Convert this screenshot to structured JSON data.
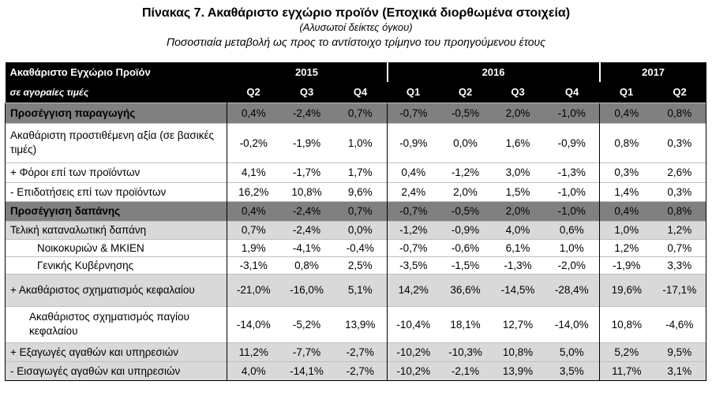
{
  "header": {
    "title": "Πίνακας 7. Ακαθάριστο εγχώριο προϊόν (Εποχικά διορθωμένα στοιχεία)",
    "subtitle1": "(Αλυσωτοί δείκτες όγκου)",
    "subtitle2": "Ποσοστιαία μεταβολή ως προς το αντίστοιχο τρίμηνο  του προηγούμενου έτους"
  },
  "table": {
    "corner_label": "Ακαθάριστο Εγχώριο Προϊόν",
    "corner_sublabel": "σε αγοραίες τιμές",
    "years": [
      "2015",
      "2016",
      "2017"
    ],
    "quarters": [
      "Q2",
      "Q3",
      "Q4",
      "Q1",
      "Q2",
      "Q3",
      "Q4",
      "Q1",
      "Q2"
    ],
    "rows": [
      {
        "label": "Προσέγγιση παραγωγής",
        "values": [
          "0,4%",
          "-2,4%",
          "0,7%",
          "-0,7%",
          "-0,5%",
          "2,0%",
          "-1,0%",
          "0,4%",
          "0,8%"
        ]
      },
      {
        "label": "Ακαθάριστη προστιθέμενη αξία (σε βασικές τιμές)",
        "values": [
          "-0,2%",
          "-1,9%",
          "1,0%",
          "-0,9%",
          "0,0%",
          "1,6%",
          "-0,9%",
          "0,8%",
          "0,3%"
        ]
      },
      {
        "label": "+  Φόροι επί των προϊόντων",
        "values": [
          "4,1%",
          "-1,7%",
          "1,7%",
          "0,4%",
          "-1,2%",
          "3,0%",
          "-1,3%",
          "0,3%",
          "2,6%"
        ]
      },
      {
        "label": "-   Επιδοτήσεις επί των προϊόντων",
        "values": [
          "16,2%",
          "10,8%",
          "9,6%",
          "2,4%",
          "2,0%",
          "1,5%",
          "-1,0%",
          "1,4%",
          "0,3%"
        ]
      },
      {
        "label": "Προσέγγιση δαπάνης",
        "values": [
          "0,4%",
          "-2,4%",
          "0,7%",
          "-0,7%",
          "-0,5%",
          "2,0%",
          "-1,0%",
          "0,4%",
          "0,8%"
        ]
      },
      {
        "label": "Τελική καταναλωτική δαπάνη",
        "values": [
          "0,7%",
          "-2,4%",
          "0,0%",
          "-1,2%",
          "-0,9%",
          "4,0%",
          "0,6%",
          "1,0%",
          "1,2%"
        ]
      },
      {
        "label": "Νοικοκυριών & ΜΚΙΕΝ",
        "values": [
          "1,9%",
          "-4,1%",
          "-0,4%",
          "-0,7%",
          "-0,6%",
          "6,1%",
          "1,0%",
          "1,2%",
          "0,7%"
        ]
      },
      {
        "label": "Γενικής Κυβέρνησης",
        "values": [
          "-3,1%",
          "0,8%",
          "2,5%",
          "-3,5%",
          "-1,5%",
          "-1,3%",
          "-2,0%",
          "-1,9%",
          "3,3%"
        ]
      },
      {
        "label": "+ Ακαθάριστος σχηματισμός κεφαλαίου",
        "values": [
          "-21,0%",
          "-16,0%",
          "5,1%",
          "14,2%",
          "36,6%",
          "-14,5%",
          "-28,4%",
          "19,6%",
          "-17,1%"
        ]
      },
      {
        "label": "Ακαθάριστος σχηματισμός παγίου κεφαλαίου",
        "values": [
          "-14,0%",
          "-5,2%",
          "13,9%",
          "-10,4%",
          "18,1%",
          "12,7%",
          "-14,0%",
          "10,8%",
          "-4,6%"
        ]
      },
      {
        "label": "+ Εξαγωγές αγαθών και υπηρεσιών",
        "values": [
          "11,2%",
          "-7,7%",
          "-2,7%",
          "-10,2%",
          "-10,3%",
          "10,8%",
          "5,0%",
          "5,2%",
          "9,5%"
        ]
      },
      {
        "label": "-  Εισαγωγές αγαθών και υπηρεσιών",
        "values": [
          "4,0%",
          "-14,1%",
          "-2,7%",
          "-10,2%",
          "-2,1%",
          "13,9%",
          "3,5%",
          "11,7%",
          "3,1%"
        ]
      }
    ]
  }
}
